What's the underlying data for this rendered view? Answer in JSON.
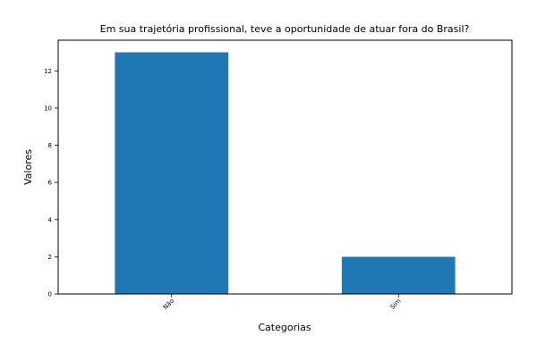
{
  "chart_data": {
    "type": "bar",
    "title": "Em sua trajetória profissional, teve a oportunidade de atuar fora do Brasil?",
    "xlabel": "Categorias",
    "ylabel": "Valores",
    "categories": [
      "Não",
      "Sim"
    ],
    "values": [
      13,
      2
    ],
    "ylim": [
      0,
      13.65
    ],
    "yticks": [
      0,
      2,
      4,
      6,
      8,
      10,
      12
    ],
    "grid": false,
    "legend": "none",
    "bar_color": "#1f77b4"
  }
}
